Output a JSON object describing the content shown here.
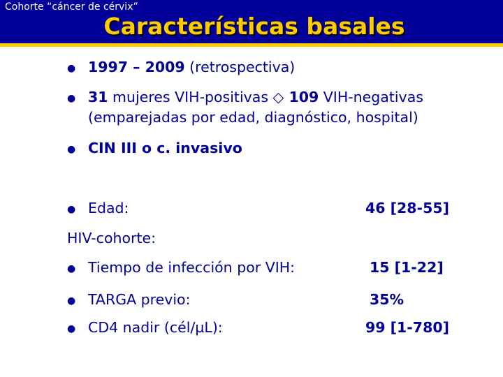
{
  "header": {
    "subtitle": "Cohorte “cáncer de cérvix”",
    "title": "Características basales"
  },
  "bullets": {
    "b1": {
      "years": "1997 – 2009",
      "rest": " (retrospectiva)"
    },
    "b2": {
      "n_pos": "31",
      "pos_text": " mujeres VIH-positivas ",
      "symbol": "◇",
      "n_neg": " 109",
      "neg_text": " VIH-negativas",
      "line2": "(emparejadas por edad, diagnóstico, hospital)"
    },
    "b3": {
      "text": "CIN III o c. invasivo"
    }
  },
  "age": {
    "label": "Edad:",
    "value": "46 [28-55]"
  },
  "hiv_cohort": {
    "heading": "HIV-cohorte:",
    "rows": [
      {
        "label": "Tiempo de infección por VIH:",
        "value": "15 [1-22]"
      },
      {
        "label": "TARGA previo:",
        "value": "35%"
      },
      {
        "label": "CD4 nadir (cél/µL):",
        "value": "99 [1-780]"
      }
    ]
  },
  "colors": {
    "header_bg": "#000099",
    "accent": "#ffcc00",
    "text": "#000099"
  }
}
